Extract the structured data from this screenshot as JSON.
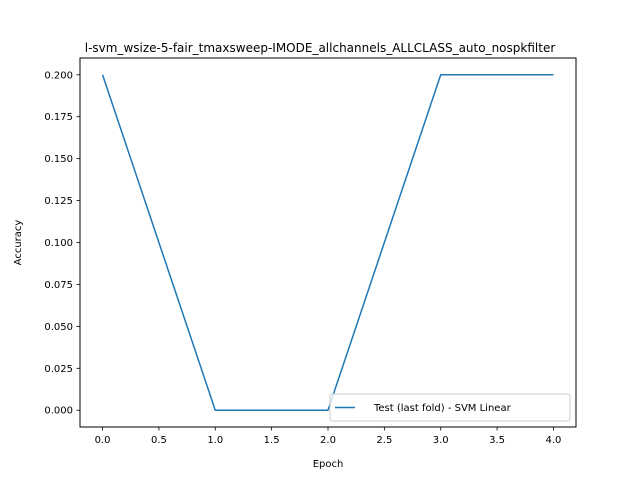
{
  "chart_data": {
    "type": "line",
    "title": "l-svm_wsize-5-fair_tmaxsweep-IMODE_allchannels_ALLCLASS_auto_nospkfilter",
    "xlabel": "Epoch",
    "ylabel": "Accuracy",
    "xlim": [
      -0.2,
      4.2
    ],
    "ylim": [
      -0.01,
      0.21
    ],
    "xticks": [
      0.0,
      0.5,
      1.0,
      1.5,
      2.0,
      2.5,
      3.0,
      3.5,
      4.0
    ],
    "xtick_labels": [
      "0.0",
      "0.5",
      "1.0",
      "1.5",
      "2.0",
      "2.5",
      "3.0",
      "3.5",
      "4.0"
    ],
    "yticks": [
      0.0,
      0.025,
      0.05,
      0.075,
      0.1,
      0.125,
      0.15,
      0.175,
      0.2
    ],
    "ytick_labels": [
      "0.000",
      "0.025",
      "0.050",
      "0.075",
      "0.100",
      "0.125",
      "0.150",
      "0.175",
      "0.200"
    ],
    "grid": false,
    "legend_position": "lower-right",
    "series": [
      {
        "name": "Test (last fold) - SVM Linear",
        "color": "#1f77b4",
        "x": [
          0,
          1,
          2,
          3,
          4
        ],
        "y": [
          0.2,
          0.0,
          0.0,
          0.2,
          0.2
        ]
      }
    ]
  }
}
